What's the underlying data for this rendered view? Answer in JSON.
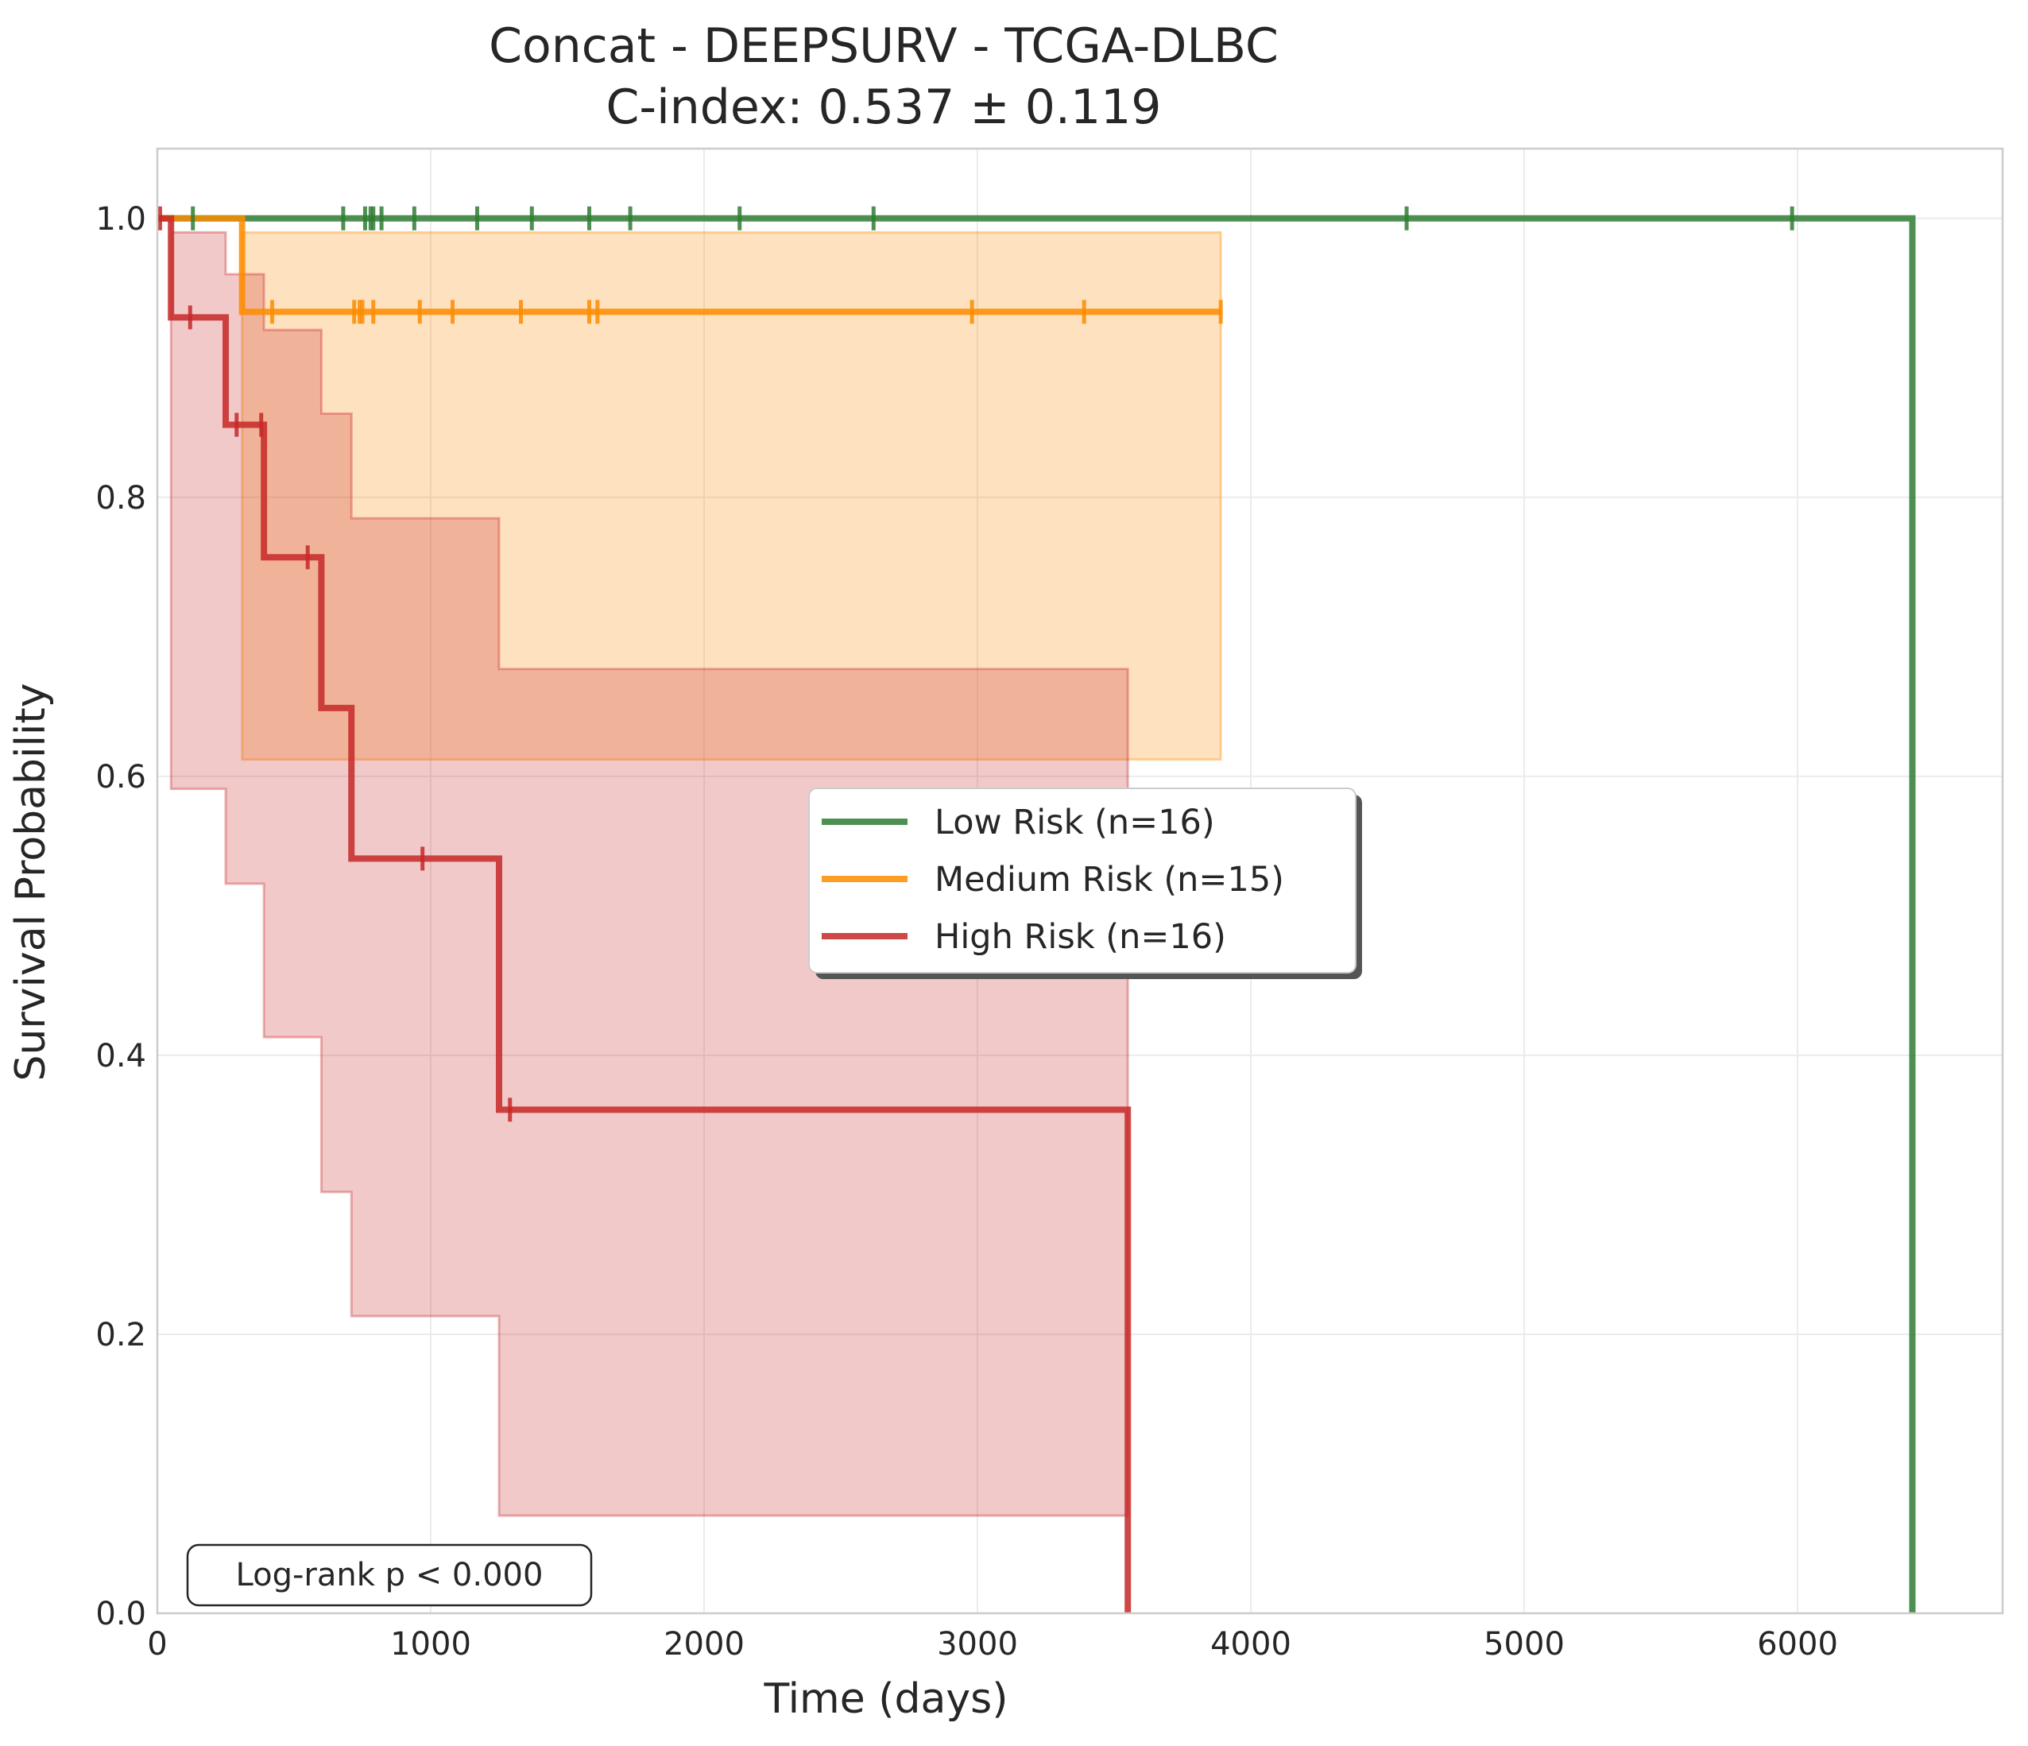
{
  "chart_data": {
    "type": "line",
    "subtype": "kaplan-meier",
    "title": "Concat - DEEPSURV - TCGA-DLBC",
    "subtitle": "C-index: 0.537 ± 0.119",
    "xlabel": "Time (days)",
    "ylabel": "Survival Probability",
    "xlim": [
      0,
      6750
    ],
    "ylim": [
      0,
      1.05
    ],
    "xticks": [
      0,
      1000,
      2000,
      3000,
      4000,
      5000,
      6000
    ],
    "xtick_labels": [
      "0",
      "1000",
      "2000",
      "3000",
      "4000",
      "5000",
      "6000"
    ],
    "yticks": [
      0.0,
      0.2,
      0.4,
      0.6,
      0.8,
      1.0
    ],
    "ytick_labels": [
      "0.0",
      "0.2",
      "0.4",
      "0.6",
      "0.8",
      "1.0"
    ],
    "grid": true,
    "legend_position": "center-right",
    "annotation": "Log-rank p < 0.000",
    "series": [
      {
        "name": "Low Risk (n=16)",
        "color": "#2e7d32",
        "steps": [
          [
            0,
            1.0
          ],
          [
            6420,
            1.0
          ],
          [
            6420,
            0.0
          ]
        ],
        "censor_times": [
          130,
          680,
          760,
          780,
          790,
          820,
          940,
          1170,
          1370,
          1580,
          1730,
          2130,
          2620,
          4570,
          5980
        ],
        "censor_values": [
          1.0,
          1.0,
          1.0,
          1.0,
          1.0,
          1.0,
          1.0,
          1.0,
          1.0,
          1.0,
          1.0,
          1.0,
          1.0,
          1.0,
          1.0
        ],
        "ci_upper": [],
        "ci_lower": []
      },
      {
        "name": "Medium Risk (n=15)",
        "color": "#fb8c00",
        "steps": [
          [
            0,
            1.0
          ],
          [
            310,
            1.0
          ],
          [
            310,
            0.933
          ],
          [
            3890,
            0.933
          ]
        ],
        "censor_times": [
          420,
          720,
          740,
          750,
          790,
          960,
          1080,
          1330,
          1580,
          1610,
          2980,
          3390,
          3890
        ],
        "censor_values": [
          0.933,
          0.933,
          0.933,
          0.933,
          0.933,
          0.933,
          0.933,
          0.933,
          0.933,
          0.933,
          0.933,
          0.933,
          0.933
        ],
        "ci_upper": [
          [
            0,
            1.0
          ],
          [
            310,
            1.0
          ],
          [
            310,
            0.99
          ],
          [
            3890,
            0.99
          ]
        ],
        "ci_lower": [
          [
            0,
            1.0
          ],
          [
            310,
            1.0
          ],
          [
            310,
            0.612
          ],
          [
            3890,
            0.612
          ]
        ]
      },
      {
        "name": "High Risk (n=16)",
        "color": "#c62828",
        "steps": [
          [
            0,
            1.0
          ],
          [
            50,
            1.0
          ],
          [
            50,
            0.929
          ],
          [
            250,
            0.929
          ],
          [
            250,
            0.852
          ],
          [
            390,
            0.852
          ],
          [
            390,
            0.757
          ],
          [
            600,
            0.757
          ],
          [
            600,
            0.649
          ],
          [
            710,
            0.649
          ],
          [
            710,
            0.541
          ],
          [
            1250,
            0.541
          ],
          [
            1250,
            0.361
          ],
          [
            3550,
            0.361
          ],
          [
            3550,
            0.0
          ]
        ],
        "censor_times": [
          10,
          120,
          290,
          380,
          550,
          970,
          1290
        ],
        "censor_values": [
          1.0,
          0.929,
          0.852,
          0.852,
          0.757,
          0.541,
          0.361
        ],
        "ci_upper": [
          [
            0,
            1.0
          ],
          [
            50,
            1.0
          ],
          [
            50,
            0.99
          ],
          [
            250,
            0.99
          ],
          [
            250,
            0.96
          ],
          [
            390,
            0.96
          ],
          [
            390,
            0.92
          ],
          [
            600,
            0.92
          ],
          [
            600,
            0.86
          ],
          [
            710,
            0.86
          ],
          [
            710,
            0.785
          ],
          [
            1250,
            0.785
          ],
          [
            1250,
            0.677
          ],
          [
            3550,
            0.677
          ]
        ],
        "ci_lower": [
          [
            0,
            1.0
          ],
          [
            50,
            1.0
          ],
          [
            50,
            0.591
          ],
          [
            250,
            0.591
          ],
          [
            250,
            0.523
          ],
          [
            390,
            0.523
          ],
          [
            390,
            0.413
          ],
          [
            600,
            0.413
          ],
          [
            600,
            0.302
          ],
          [
            710,
            0.302
          ],
          [
            710,
            0.213
          ],
          [
            1250,
            0.213
          ],
          [
            1250,
            0.07
          ],
          [
            3550,
            0.07
          ]
        ]
      }
    ]
  }
}
